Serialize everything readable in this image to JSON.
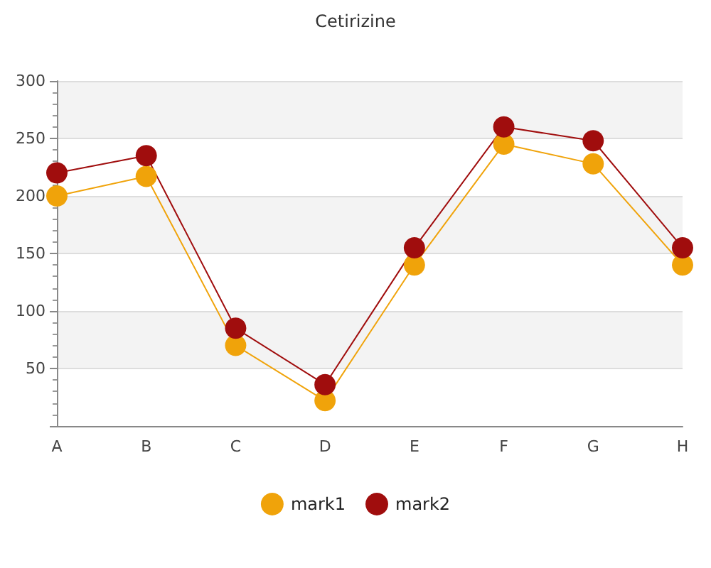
{
  "chart_data": {
    "type": "line",
    "title": "Cetirizine",
    "categories": [
      "A",
      "B",
      "C",
      "D",
      "E",
      "F",
      "G",
      "H"
    ],
    "series": [
      {
        "name": "mark1",
        "color": "#f0a30a",
        "values": [
          200,
          217,
          70,
          22,
          140,
          245,
          228,
          140
        ]
      },
      {
        "name": "mark2",
        "color": "#a00d0d",
        "values": [
          220,
          235,
          85,
          36,
          155,
          260,
          248,
          155
        ]
      }
    ],
    "ylim": [
      0,
      300
    ],
    "yticks": [
      {
        "value": 0,
        "label": null
      },
      50,
      100,
      150,
      200,
      250,
      300
    ],
    "grid": "y",
    "legend": "bottom",
    "marker": "circle"
  }
}
